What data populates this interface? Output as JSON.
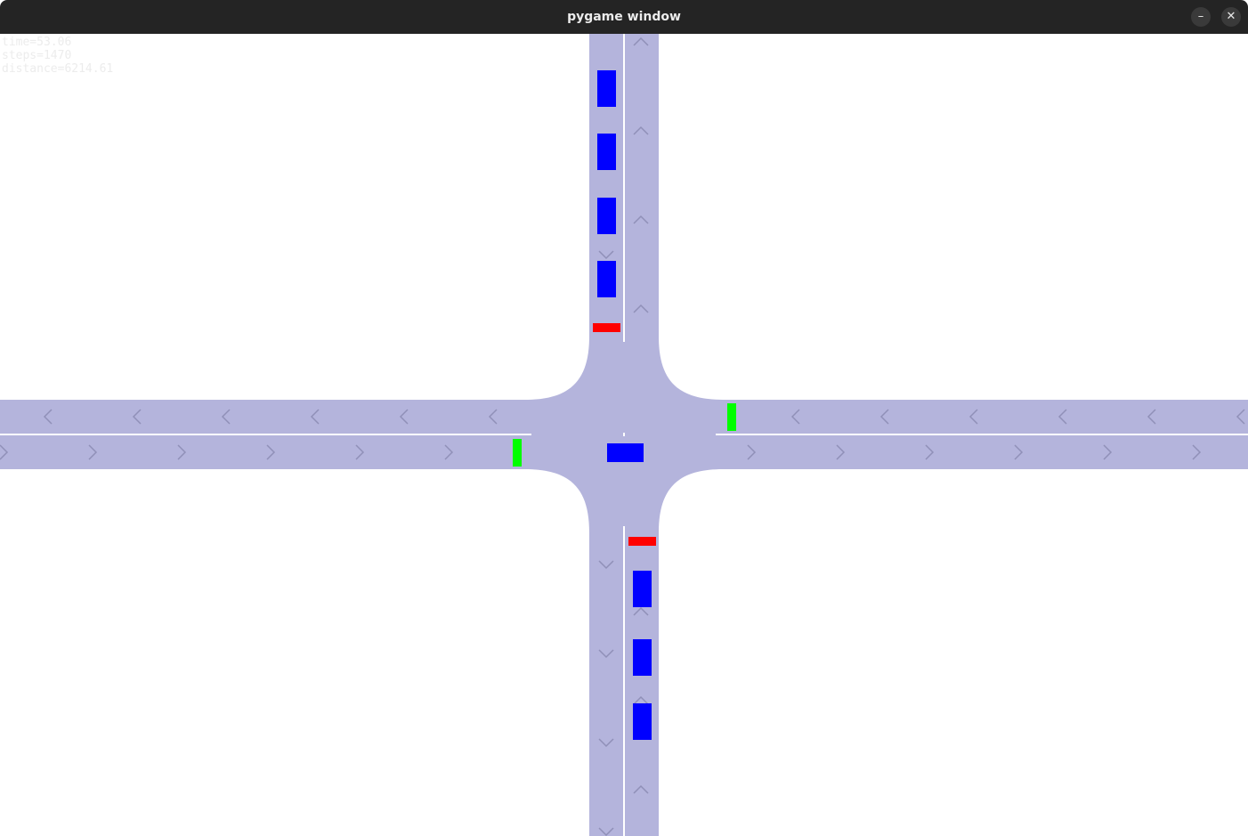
{
  "window": {
    "title": "pygame window",
    "minimize_label": "–",
    "close_label": "✕"
  },
  "hud": {
    "time": "time=53.06",
    "steps": "steps=1470",
    "distance": "distance=6214.61"
  },
  "colors": {
    "road": "#b4b4dc",
    "lane_divider": "#ffffff",
    "arrow": "#9090b8",
    "vehicle": "#0000ff",
    "signal_red": "#ff0000",
    "signal_green": "#00ff00"
  },
  "signals": [
    {
      "approach": "north",
      "state": "red"
    },
    {
      "approach": "east",
      "state": "green"
    },
    {
      "approach": "west",
      "state": "green"
    },
    {
      "approach": "south",
      "state": "red"
    }
  ],
  "vehicle_counts": {
    "north_queue": 4,
    "south_queue": 3,
    "in_intersection": 1
  }
}
